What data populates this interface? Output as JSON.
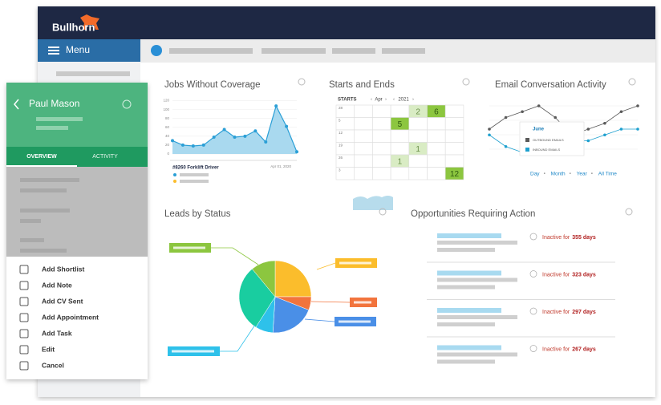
{
  "brand": "Bullhorn",
  "nav": {
    "menu": "Menu"
  },
  "panel": {
    "name": "Paul Mason",
    "tabs": [
      "OVERVIEW",
      "ACTIVITY"
    ],
    "actions": [
      "Add Shortlist",
      "Add Note",
      "Add CV Sent",
      "Add Appointment",
      "Add Task",
      "Edit",
      "Cancel"
    ]
  },
  "jobs": {
    "title": "Jobs Without Coverage",
    "type": "area",
    "color": "#a9d9ef",
    "line_color": "#2b9fd6",
    "values": [
      30,
      20,
      18,
      20,
      38,
      55,
      38,
      40,
      52,
      27,
      108,
      62,
      5
    ],
    "ylim": [
      0,
      130
    ],
    "yticks": [
      0,
      20,
      40,
      60,
      80,
      100,
      120
    ],
    "job": "#8260 Forklift Driver",
    "date": "Apr 01, 2020"
  },
  "calendar": {
    "title": "Starts and Ends",
    "label": "STARTS",
    "month": "Apr",
    "year": "2021",
    "weeks": [
      [
        "28",
        null,
        null,
        null,
        {
          "day": "2",
          "state": "light"
        },
        {
          "day": "6",
          "state": "strong"
        },
        null
      ],
      [
        "5",
        null,
        null,
        {
          "day": "5",
          "state": "strong"
        },
        null,
        null,
        null
      ],
      [
        "12",
        null,
        null,
        null,
        null,
        null,
        null
      ],
      [
        "19",
        null,
        null,
        null,
        {
          "day": "1",
          "state": "light"
        },
        null,
        null
      ],
      [
        "26",
        null,
        null,
        {
          "day": "1",
          "state": "light"
        },
        null,
        null,
        null
      ],
      [
        "3",
        null,
        null,
        null,
        null,
        null,
        {
          "day": "12",
          "state": "strong"
        }
      ]
    ]
  },
  "email": {
    "title": "Email Conversation Activity",
    "month": "June",
    "series": [
      {
        "name": "OUTBOUND EMAILS",
        "color": "#5a5a5a",
        "values": [
          5,
          7,
          8,
          9,
          7,
          4,
          5,
          6,
          8,
          9
        ]
      },
      {
        "name": "INBOUND EMAILS",
        "color": "#1ea0cf",
        "values": [
          4,
          2,
          1,
          2,
          3,
          3,
          3,
          4,
          5,
          5
        ]
      }
    ],
    "ranges": [
      "Day",
      "Month",
      "Year",
      "All Time"
    ]
  },
  "leads": {
    "title": "Leads by Status",
    "type": "pie",
    "series": [
      {
        "color": "#fbbd2c",
        "values": [
          25
        ]
      },
      {
        "color": "#f2743d",
        "values": [
          6
        ]
      },
      {
        "color": "#4a8fe7",
        "values": [
          20
        ]
      },
      {
        "color": "#2ec1ea",
        "values": [
          8
        ]
      },
      {
        "color": "#19cda0",
        "values": [
          30
        ]
      },
      {
        "color": "#8cc63f",
        "values": [
          11
        ]
      }
    ]
  },
  "opps": {
    "title": "Opportunities Requiring Action",
    "prefix": "Inactive for",
    "days": [
      "355 days",
      "323 days",
      "297 days",
      "267 days"
    ]
  }
}
